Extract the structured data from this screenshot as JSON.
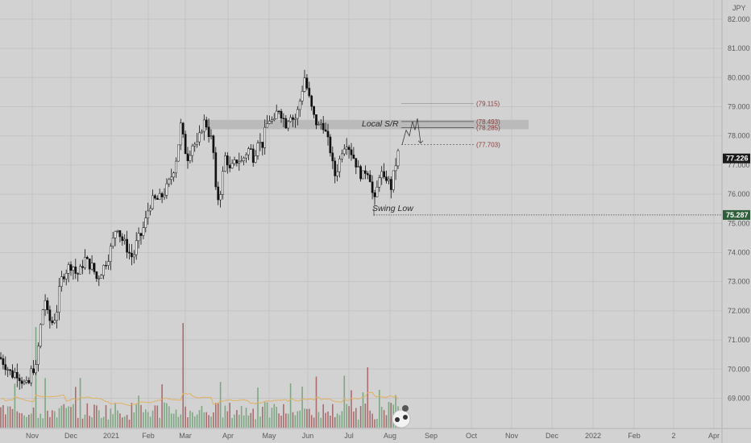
{
  "chart_data": {
    "type": "candlestick",
    "currency": "JPY",
    "y_ticks": [
      "82.000",
      "81.000",
      "80.000",
      "79.000",
      "78.000",
      "77.000",
      "76.000",
      "75.000",
      "74.000",
      "73.000",
      "72.000",
      "71.000",
      "70.000",
      "69.000"
    ],
    "x_ticks": [
      "Nov",
      "Dec",
      "2021",
      "Feb",
      "Mar",
      "Apr",
      "May",
      "Jun",
      "Jul",
      "Aug",
      "Sep",
      "Oct",
      "Nov",
      "Dec",
      "2022",
      "Feb",
      "2",
      "Apr"
    ],
    "ylim": [
      68.35,
      82.55
    ],
    "last_price": "77.226",
    "swing_low_price": "75.287",
    "annotations": {
      "local_sr": "Local S/R",
      "swing_low": "Swing Low",
      "sr_zone": [
        78.285,
        78.493
      ],
      "levels": [
        {
          "label": "(79.115)",
          "value": 79.115
        },
        {
          "label": "(78.493)",
          "value": 78.493
        },
        {
          "label": "(78.285)",
          "value": 78.285
        },
        {
          "label": "(77.703)",
          "value": 77.703
        }
      ],
      "projection_path": [
        77.7,
        78.2,
        78.0,
        78.5,
        78.2,
        78.6,
        77.75
      ]
    },
    "price_path": [
      [
        0,
        70.4
      ],
      [
        5,
        70.2
      ],
      [
        10,
        70.0
      ],
      [
        15,
        69.8
      ],
      [
        20,
        69.9
      ],
      [
        25,
        69.7
      ],
      [
        30,
        69.5
      ],
      [
        35,
        69.4
      ],
      [
        40,
        70.1
      ],
      [
        44,
        69.9
      ],
      [
        48,
        70.9
      ],
      [
        52,
        71.9
      ],
      [
        56,
        72.4
      ],
      [
        60,
        71.7
      ],
      [
        65,
        71.6
      ],
      [
        70,
        71.9
      ],
      [
        75,
        73.0
      ],
      [
        80,
        73.3
      ],
      [
        85,
        73.5
      ],
      [
        90,
        73.6
      ],
      [
        95,
        73.2
      ],
      [
        100,
        73.4
      ],
      [
        105,
        73.8
      ],
      [
        110,
        73.6
      ],
      [
        115,
        73.5
      ],
      [
        120,
        73.1
      ],
      [
        125,
        73.3
      ],
      [
        130,
        73.6
      ],
      [
        135,
        73.9
      ],
      [
        140,
        74.4
      ],
      [
        145,
        75.0
      ],
      [
        150,
        74.5
      ],
      [
        155,
        74.3
      ],
      [
        160,
        74.0
      ],
      [
        165,
        73.8
      ],
      [
        170,
        74.4
      ],
      [
        175,
        74.6
      ],
      [
        180,
        75.0
      ],
      [
        185,
        75.6
      ],
      [
        190,
        75.8
      ],
      [
        195,
        75.8
      ],
      [
        200,
        75.9
      ],
      [
        205,
        76.1
      ],
      [
        210,
        76.4
      ],
      [
        215,
        76.8
      ],
      [
        220,
        77.4
      ],
      [
        224,
        78.4
      ],
      [
        228,
        77.8
      ],
      [
        232,
        77.2
      ],
      [
        236,
        77.5
      ],
      [
        240,
        77.8
      ],
      [
        244,
        77.6
      ],
      [
        248,
        78.0
      ],
      [
        252,
        78.5
      ],
      [
        256,
        78.4
      ],
      [
        260,
        78.0
      ],
      [
        264,
        77.8
      ],
      [
        268,
        76.0
      ],
      [
        272,
        75.8
      ],
      [
        276,
        76.6
      ],
      [
        280,
        77.4
      ],
      [
        285,
        76.8
      ],
      [
        290,
        77.0
      ],
      [
        295,
        77.2
      ],
      [
        300,
        77.1
      ],
      [
        305,
        77.4
      ],
      [
        310,
        77.6
      ],
      [
        315,
        77.2
      ],
      [
        320,
        77.9
      ],
      [
        325,
        77.6
      ],
      [
        330,
        78.3
      ],
      [
        335,
        78.6
      ],
      [
        340,
        78.4
      ],
      [
        345,
        79.0
      ],
      [
        350,
        78.7
      ],
      [
        355,
        78.4
      ],
      [
        360,
        78.8
      ],
      [
        365,
        78.5
      ],
      [
        370,
        78.9
      ],
      [
        375,
        79.6
      ],
      [
        378,
        80.0
      ],
      [
        382,
        79.5
      ],
      [
        386,
        79.0
      ],
      [
        390,
        78.6
      ],
      [
        395,
        78.3
      ],
      [
        400,
        78.5
      ],
      [
        405,
        78.0
      ],
      [
        410,
        77.5
      ],
      [
        415,
        76.6
      ],
      [
        420,
        77.0
      ],
      [
        425,
        77.6
      ],
      [
        430,
        77.8
      ],
      [
        435,
        77.5
      ],
      [
        440,
        77.2
      ],
      [
        445,
        76.8
      ],
      [
        450,
        76.6
      ],
      [
        455,
        76.9
      ],
      [
        460,
        76.5
      ],
      [
        464,
        75.6
      ],
      [
        468,
        76.2
      ],
      [
        472,
        76.9
      ],
      [
        476,
        76.4
      ],
      [
        480,
        76.6
      ],
      [
        485,
        76.2
      ],
      [
        490,
        76.9
      ],
      [
        494,
        77.4
      ]
    ]
  },
  "ui": {
    "colors": {
      "background": "#d2d2d2",
      "grid": "#c4c4c4",
      "axis_border": "#b3b3b3",
      "up": "#ffffff",
      "down": "#111111",
      "wick": "#111111",
      "vol_up": "#7ea883",
      "vol_down": "#a96d6d",
      "vol_ma": "#e1b15f",
      "sr_zone": "#b8b8b8",
      "dashed": "#4a4a4a",
      "level_text": "#8a3c3c",
      "last_badge": "#1a1a1a",
      "swing_badge": "#2e5f3a"
    },
    "watermark": "TradingView logo"
  }
}
